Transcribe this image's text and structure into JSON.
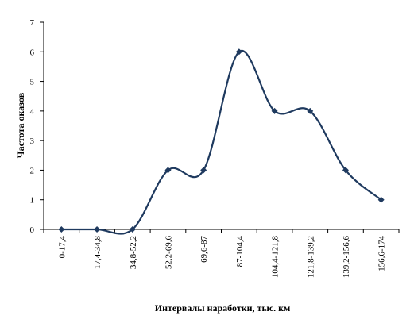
{
  "chart_data": {
    "type": "line",
    "title": "",
    "xlabel": "Интервалы   наработки,   тыс. км",
    "ylabel": "Частота  оказов",
    "categories": [
      "0-17,4",
      "17,4-34,8",
      "34,8-52,2",
      "52,2-69,6",
      "69,6-87",
      "87-104,4",
      "104,4-121,8",
      "121,8-139,2",
      "139,2-156,6",
      "156,6-174"
    ],
    "series": [
      {
        "values": [
          0,
          0,
          0,
          2,
          2,
          6,
          4,
          4,
          2,
          1
        ]
      }
    ],
    "ylim": [
      0,
      7
    ],
    "yticks": [
      0,
      1,
      2,
      3,
      4,
      5,
      6,
      7
    ],
    "smooth": true,
    "marker": "diamond",
    "grid": false,
    "legend": "none",
    "line_color": "#1f3a5f"
  }
}
